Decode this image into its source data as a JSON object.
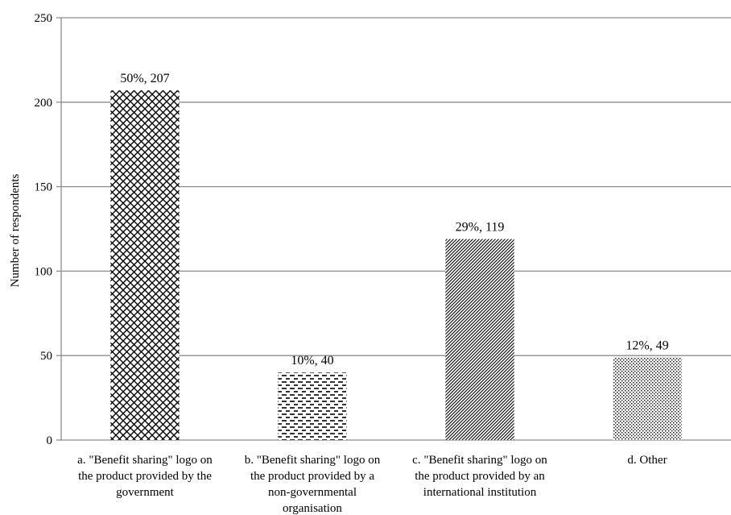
{
  "chart_data": {
    "type": "bar",
    "categories": [
      [
        "a. \"Benefit sharing\" logo on",
        "the product provided by the",
        "government"
      ],
      [
        "b. \"Benefit sharing\" logo on",
        "the product provided by a",
        "non-governmental",
        "organisation"
      ],
      [
        "c. \"Benefit sharing\" logo on",
        "the product provided by an",
        "international institution"
      ],
      [
        "d. Other"
      ]
    ],
    "values": [
      207,
      40,
      119,
      49
    ],
    "data_labels": [
      "50%, 207",
      "10%, 40",
      "29%, 119",
      "12%, 49"
    ],
    "patterns": [
      "diagonal-crosshatch",
      "horizontal-dashes",
      "dense-diagonal",
      "dotted-grid"
    ],
    "ylabel": "Number of respondents",
    "xlabel": "",
    "ylim": [
      0,
      250
    ],
    "yticks": [
      0,
      50,
      100,
      150,
      200,
      250
    ],
    "grid": true,
    "colors": {
      "bar_ink": "#000000",
      "bar_fill": "#ffffff",
      "gridline": "#8c8c8c"
    }
  }
}
